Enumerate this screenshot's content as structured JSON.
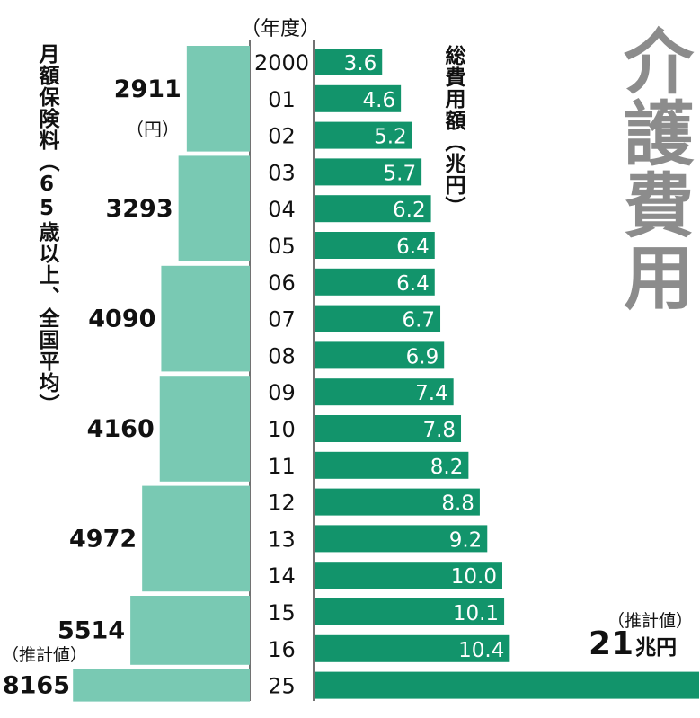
{
  "title": "介護費用",
  "left_label": "月額保険料（65歳以上、全国平均）",
  "right_label": "総費用額（兆円）",
  "year_unit": "（年度）",
  "premium_unit": "（円）",
  "estimate_label_left": "（推計値）",
  "estimate_label_right": "（推計値）",
  "estimate_total_value": "21",
  "estimate_total_unit": "兆円",
  "colors": {
    "total_bar": "#12946b",
    "premium_bar": "#79c9b3",
    "axis_line": "#444444"
  },
  "chart_data": [
    {
      "type": "bar",
      "orientation": "horizontal",
      "series": [
        {
          "name": "総費用額",
          "unit": "兆円"
        }
      ],
      "categories": [
        "2000",
        "01",
        "02",
        "03",
        "04",
        "05",
        "06",
        "07",
        "08",
        "09",
        "10",
        "11",
        "12",
        "13",
        "14",
        "15",
        "16",
        "25"
      ],
      "values": [
        3.6,
        4.6,
        5.2,
        5.7,
        6.2,
        6.4,
        6.4,
        6.7,
        6.9,
        7.4,
        7.8,
        8.2,
        8.8,
        9.2,
        10.0,
        10.1,
        10.4,
        21
      ],
      "labels": [
        "3.6",
        "4.6",
        "5.2",
        "5.7",
        "6.2",
        "6.4",
        "6.4",
        "6.7",
        "6.9",
        "7.4",
        "7.8",
        "8.2",
        "8.8",
        "9.2",
        "10.0",
        "10.1",
        "10.4",
        ""
      ]
    },
    {
      "type": "bar",
      "orientation": "horizontal",
      "direction": "leftward",
      "series": [
        {
          "name": "月額保険料",
          "unit": "円"
        }
      ],
      "periods": [
        {
          "label": "2911",
          "value": 2911,
          "from": "2000",
          "to": "02"
        },
        {
          "label": "3293",
          "value": 3293,
          "from": "03",
          "to": "05"
        },
        {
          "label": "4090",
          "value": 4090,
          "from": "06",
          "to": "08"
        },
        {
          "label": "4160",
          "value": 4160,
          "from": "09",
          "to": "11"
        },
        {
          "label": "4972",
          "value": 4972,
          "from": "12",
          "to": "14"
        },
        {
          "label": "5514",
          "value": 5514,
          "from": "15",
          "to": "16"
        },
        {
          "label": "8165",
          "value": 8165,
          "from": "25",
          "to": "25"
        }
      ]
    }
  ]
}
